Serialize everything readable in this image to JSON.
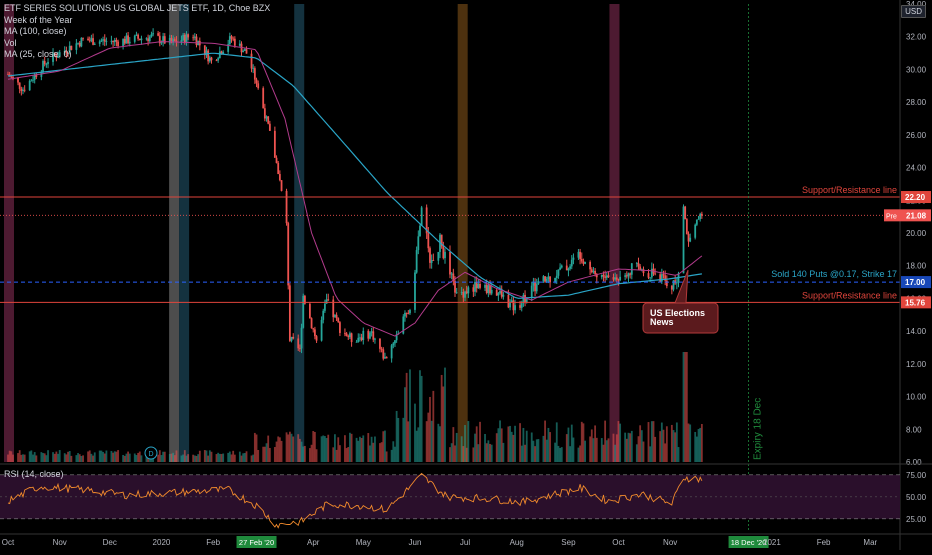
{
  "header": {
    "title": "ETF SERIES SOLUTIONS US GLOBAL JETS ETF, 1D, Choe BZX",
    "indicators": [
      "Week of the Year",
      "MA (100, close)",
      "Vol",
      "MA (25, close, 0)"
    ],
    "currency": "USD"
  },
  "rsi_label": "RSI (14, close)",
  "event_marker": "D",
  "colors": {
    "background": "#000000",
    "up": "#26a69a",
    "down": "#ef5350",
    "ma100": "#2aa5c7",
    "ma25": "#b23b8c",
    "resistance": "#e0453c",
    "puts_line": "#2962ff",
    "rsi_line": "#f28b2c",
    "rsi_band": "#2a0f2b",
    "expiry": "#1f8a3c"
  },
  "annotations": {
    "resistance_label": "Support/Resistance line",
    "puts_label": "Sold 140 Puts @0.17, Strike 17",
    "callout": [
      "US Elections",
      "News"
    ],
    "expiry_label": "Expiry 18 Dec"
  },
  "price_badges": {
    "resistance_high": "22.20",
    "current_prefix": "Pre",
    "current": "21.08",
    "strike": "17.00",
    "resistance_low": "15.76"
  },
  "time_badges": {
    "highlight_date": "27 Feb '20",
    "expiry_date": "18 Dec '20"
  },
  "chart_data": {
    "type": "candlestick",
    "title": "ETF SERIES SOLUTIONS US GLOBAL JETS ETF, 1D, Choe BZX",
    "x_ticks": [
      "Oct",
      "Nov",
      "Dec",
      "2020",
      "Feb",
      "27 Feb '20",
      "Apr",
      "May",
      "Jun",
      "Jul",
      "Aug",
      "Sep",
      "Oct",
      "Nov",
      "18 Dec '20",
      "2021",
      "Feb",
      "Mar"
    ],
    "y_ticks": [
      "34.00",
      "32.00",
      "30.00",
      "28.00",
      "26.00",
      "24.00",
      "22.00",
      "20.00",
      "18.00",
      "16.00",
      "14.00",
      "12.00",
      "10.00",
      "8.00",
      "6.00"
    ],
    "ylim": [
      6,
      34
    ],
    "price_anchors": [
      {
        "d": "2019-10-01",
        "v": 29.7
      },
      {
        "d": "2019-10-10",
        "v": 28.8
      },
      {
        "d": "2019-10-25",
        "v": 30.6
      },
      {
        "d": "2019-11-15",
        "v": 31.8
      },
      {
        "d": "2019-12-05",
        "v": 31.7
      },
      {
        "d": "2019-12-26",
        "v": 32.0
      },
      {
        "d": "2020-01-07",
        "v": 31.6
      },
      {
        "d": "2020-01-20",
        "v": 32.1
      },
      {
        "d": "2020-01-31",
        "v": 30.5
      },
      {
        "d": "2020-02-12",
        "v": 31.9
      },
      {
        "d": "2020-02-21",
        "v": 31.0
      },
      {
        "d": "2020-02-27",
        "v": 29.2
      },
      {
        "d": "2020-03-05",
        "v": 26.5
      },
      {
        "d": "2020-03-11",
        "v": 23.8
      },
      {
        "d": "2020-03-16",
        "v": 20.5
      },
      {
        "d": "2020-03-18",
        "v": 13.5
      },
      {
        "d": "2020-03-24",
        "v": 12.8
      },
      {
        "d": "2020-03-26",
        "v": 16.2
      },
      {
        "d": "2020-04-03",
        "v": 13.4
      },
      {
        "d": "2020-04-09",
        "v": 15.8
      },
      {
        "d": "2020-04-17",
        "v": 14.2
      },
      {
        "d": "2020-04-24",
        "v": 13.5
      },
      {
        "d": "2020-05-06",
        "v": 13.9
      },
      {
        "d": "2020-05-14",
        "v": 12.3
      },
      {
        "d": "2020-05-22",
        "v": 14.0
      },
      {
        "d": "2020-05-29",
        "v": 15.4
      },
      {
        "d": "2020-06-05",
        "v": 21.4
      },
      {
        "d": "2020-06-11",
        "v": 18.0
      },
      {
        "d": "2020-06-16",
        "v": 19.5
      },
      {
        "d": "2020-06-26",
        "v": 16.2
      },
      {
        "d": "2020-07-08",
        "v": 16.8
      },
      {
        "d": "2020-07-20",
        "v": 16.4
      },
      {
        "d": "2020-07-31",
        "v": 15.4
      },
      {
        "d": "2020-08-10",
        "v": 16.6
      },
      {
        "d": "2020-08-21",
        "v": 17.3
      },
      {
        "d": "2020-09-01",
        "v": 18.0
      },
      {
        "d": "2020-09-08",
        "v": 18.8
      },
      {
        "d": "2020-09-18",
        "v": 17.4
      },
      {
        "d": "2020-09-30",
        "v": 17.2
      },
      {
        "d": "2020-10-09",
        "v": 17.9
      },
      {
        "d": "2020-10-21",
        "v": 17.6
      },
      {
        "d": "2020-11-02",
        "v": 16.8
      },
      {
        "d": "2020-11-06",
        "v": 17.2
      },
      {
        "d": "2020-11-09",
        "v": 21.6
      },
      {
        "d": "2020-11-12",
        "v": 19.4
      },
      {
        "d": "2020-11-16",
        "v": 20.7
      },
      {
        "d": "2020-11-20",
        "v": 21.08
      }
    ],
    "ma100_anchors": [
      {
        "d": "2019-10-01",
        "v": 29.6
      },
      {
        "d": "2019-12-01",
        "v": 30.3
      },
      {
        "d": "2020-02-01",
        "v": 31.0
      },
      {
        "d": "2020-02-27",
        "v": 30.7
      },
      {
        "d": "2020-03-20",
        "v": 29.0
      },
      {
        "d": "2020-04-15",
        "v": 26.0
      },
      {
        "d": "2020-05-15",
        "v": 22.5
      },
      {
        "d": "2020-06-15",
        "v": 19.5
      },
      {
        "d": "2020-07-10",
        "v": 17.3
      },
      {
        "d": "2020-08-01",
        "v": 16.0
      },
      {
        "d": "2020-09-01",
        "v": 16.2
      },
      {
        "d": "2020-10-01",
        "v": 16.9
      },
      {
        "d": "2020-11-01",
        "v": 17.2
      },
      {
        "d": "2020-11-20",
        "v": 17.5
      }
    ],
    "ma25_anchors": [
      {
        "d": "2019-10-01",
        "v": 29.4
      },
      {
        "d": "2019-11-01",
        "v": 29.9
      },
      {
        "d": "2019-12-01",
        "v": 31.3
      },
      {
        "d": "2020-01-01",
        "v": 31.7
      },
      {
        "d": "2020-02-01",
        "v": 31.6
      },
      {
        "d": "2020-02-27",
        "v": 31.2
      },
      {
        "d": "2020-03-15",
        "v": 27.0
      },
      {
        "d": "2020-03-31",
        "v": 20.0
      },
      {
        "d": "2020-04-15",
        "v": 16.0
      },
      {
        "d": "2020-05-01",
        "v": 14.5
      },
      {
        "d": "2020-05-20",
        "v": 13.7
      },
      {
        "d": "2020-06-01",
        "v": 14.5
      },
      {
        "d": "2020-06-15",
        "v": 16.5
      },
      {
        "d": "2020-07-01",
        "v": 17.6
      },
      {
        "d": "2020-07-20",
        "v": 16.6
      },
      {
        "d": "2020-08-10",
        "v": 15.9
      },
      {
        "d": "2020-09-01",
        "v": 17.0
      },
      {
        "d": "2020-10-01",
        "v": 17.8
      },
      {
        "d": "2020-10-20",
        "v": 17.7
      },
      {
        "d": "2020-11-05",
        "v": 17.4
      },
      {
        "d": "2020-11-20",
        "v": 18.6
      }
    ],
    "rsi_anchors": [
      {
        "d": "2019-10-01",
        "v": 45
      },
      {
        "d": "2019-10-20",
        "v": 62
      },
      {
        "d": "2019-11-15",
        "v": 58
      },
      {
        "d": "2019-12-10",
        "v": 52
      },
      {
        "d": "2020-01-10",
        "v": 55
      },
      {
        "d": "2020-02-10",
        "v": 58
      },
      {
        "d": "2020-02-27",
        "v": 40
      },
      {
        "d": "2020-03-10",
        "v": 18
      },
      {
        "d": "2020-03-25",
        "v": 22
      },
      {
        "d": "2020-04-10",
        "v": 42
      },
      {
        "d": "2020-05-01",
        "v": 40
      },
      {
        "d": "2020-05-15",
        "v": 35
      },
      {
        "d": "2020-06-05",
        "v": 74
      },
      {
        "d": "2020-06-20",
        "v": 50
      },
      {
        "d": "2020-07-15",
        "v": 48
      },
      {
        "d": "2020-08-05",
        "v": 44
      },
      {
        "d": "2020-09-08",
        "v": 60
      },
      {
        "d": "2020-09-25",
        "v": 45
      },
      {
        "d": "2020-10-15",
        "v": 53
      },
      {
        "d": "2020-11-02",
        "v": 42
      },
      {
        "d": "2020-11-09",
        "v": 72
      },
      {
        "d": "2020-11-20",
        "v": 70
      }
    ],
    "rsi_ticks": [
      "75.00",
      "50.00",
      "25.00"
    ],
    "rsi_ylim": [
      10,
      85
    ],
    "horizontal_lines": [
      22.2,
      17.0,
      15.76
    ],
    "vertical_bands": [
      {
        "d": "2019-10-01",
        "color": "#5b1f3a"
      },
      {
        "d": "2020-01-08",
        "color": "#5a5a5a"
      },
      {
        "d": "2020-01-14",
        "color": "#173b4a"
      },
      {
        "d": "2020-03-23",
        "color": "#173b4a"
      },
      {
        "d": "2020-06-29",
        "color": "#5a3a12"
      },
      {
        "d": "2020-09-28",
        "color": "#5b1f3a"
      }
    ],
    "expiry_date": "2020-12-18"
  }
}
